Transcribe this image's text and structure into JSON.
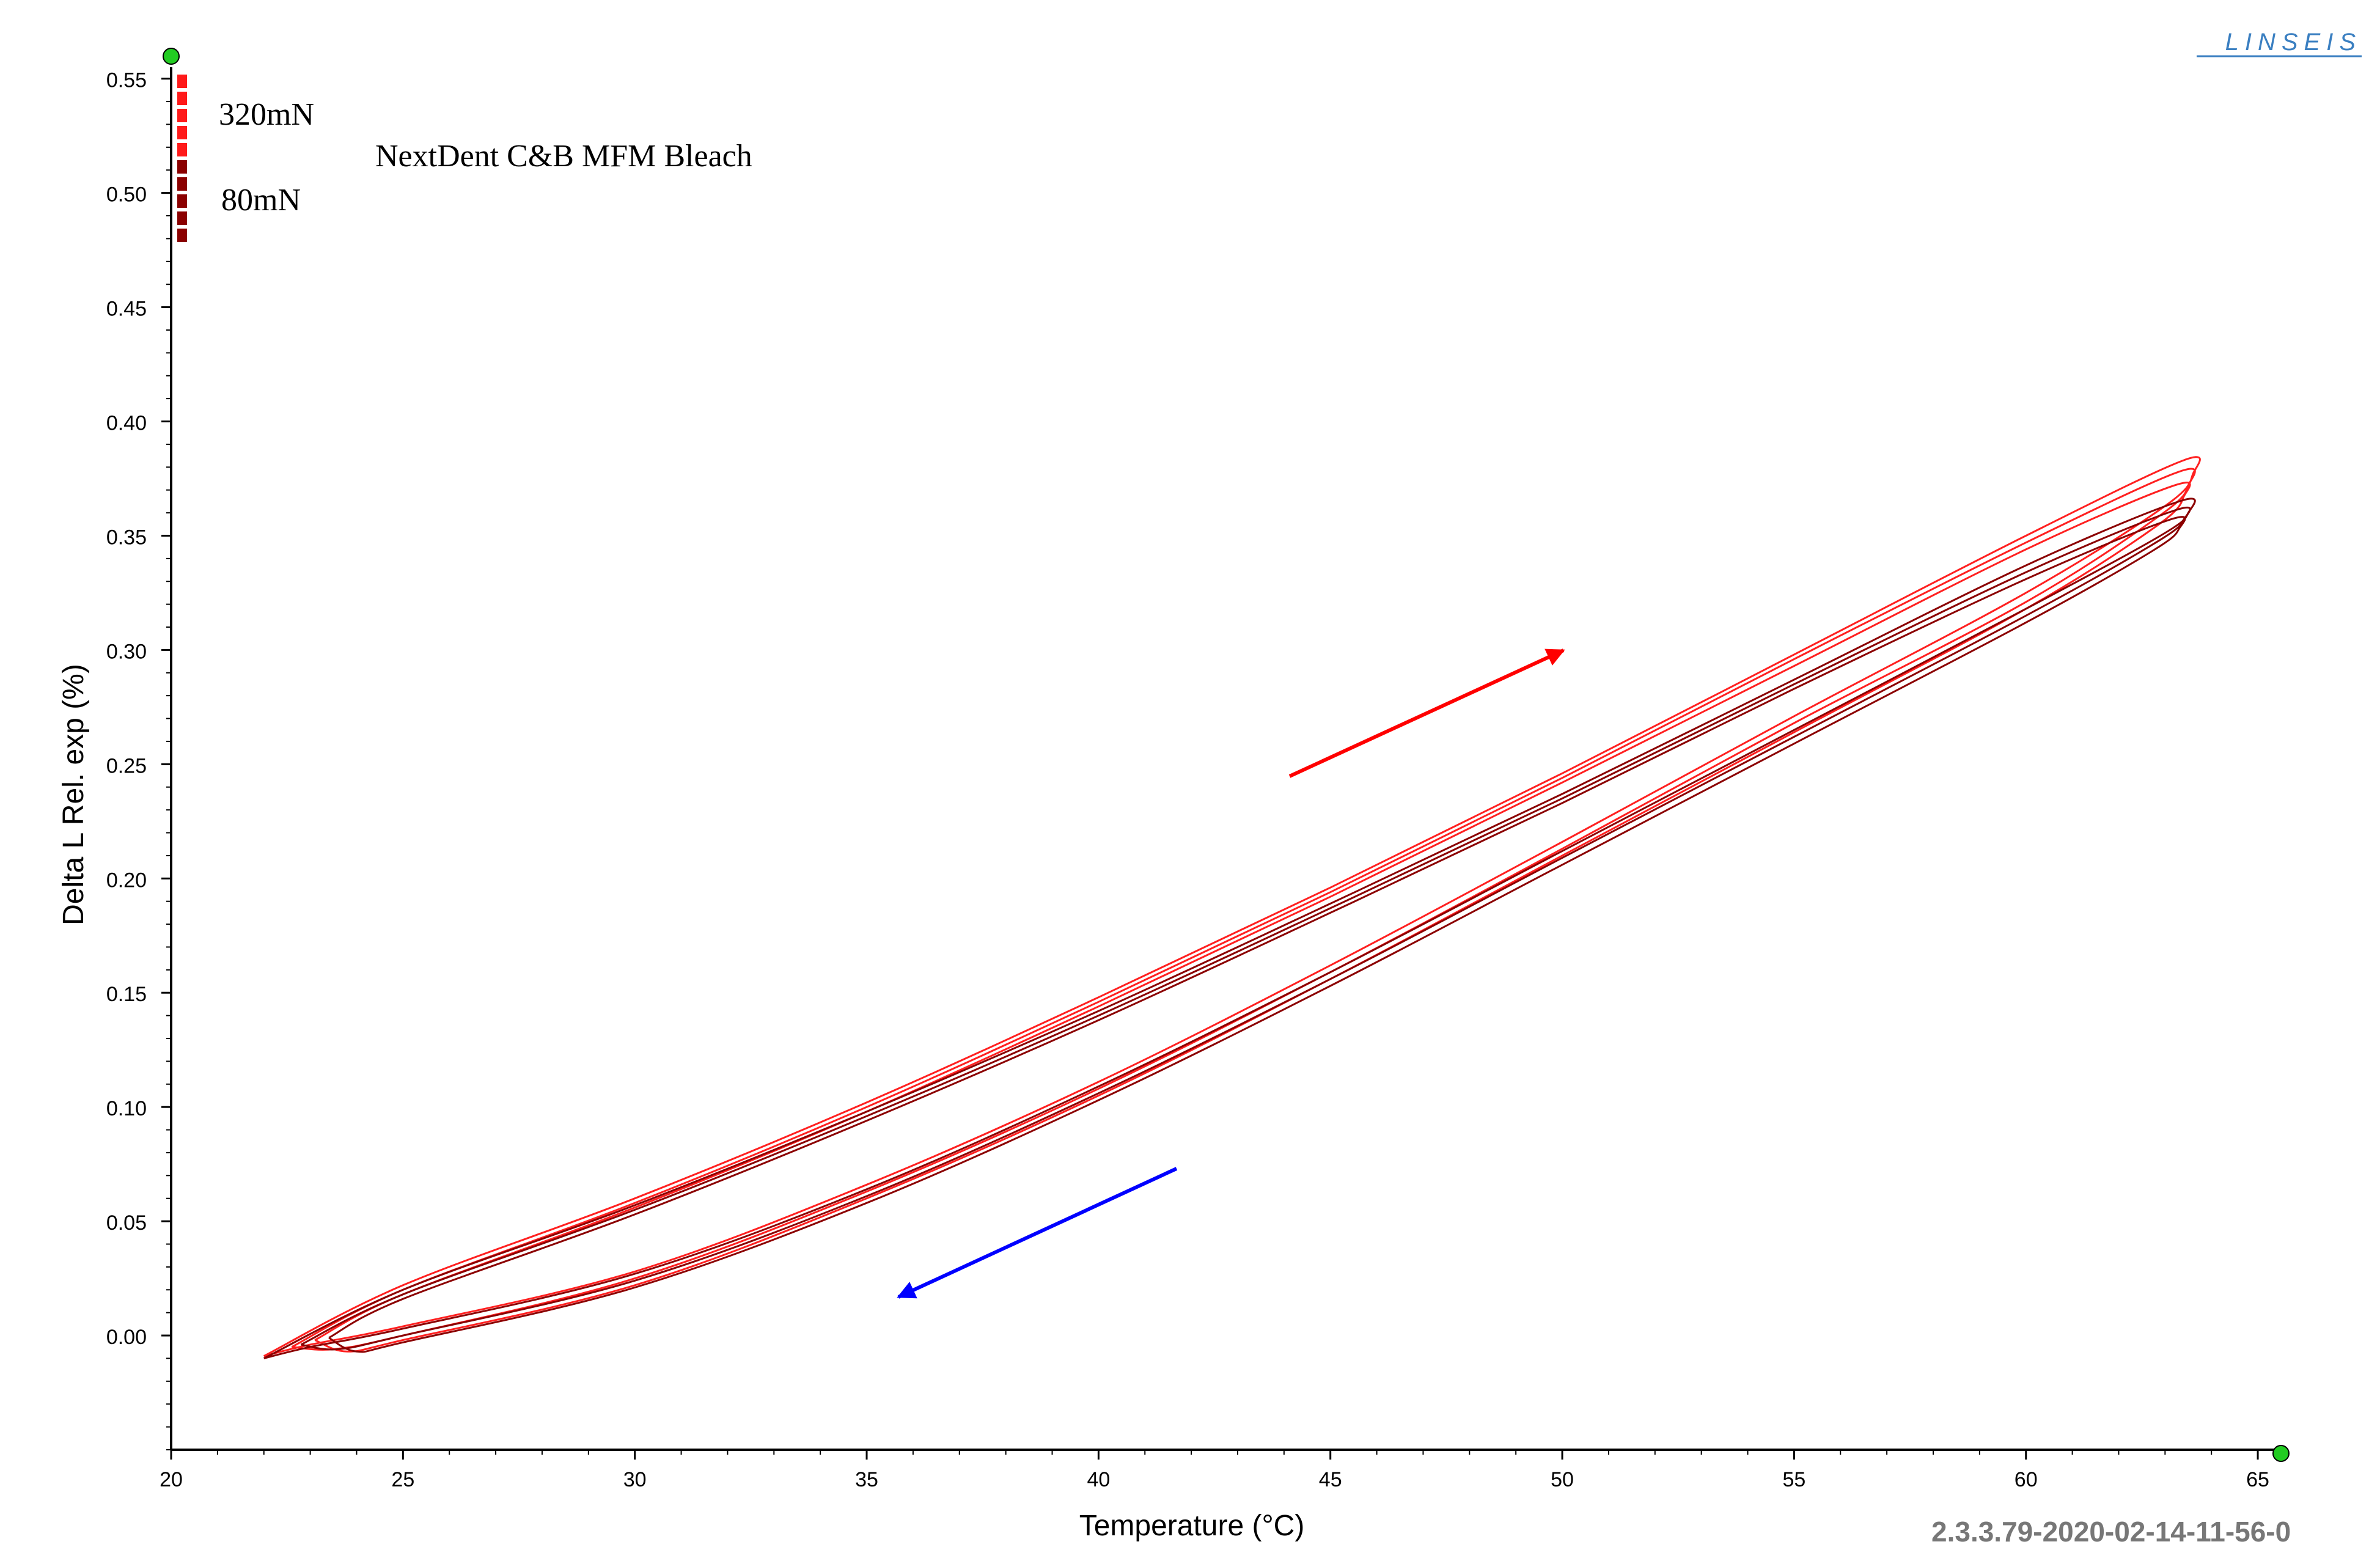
{
  "brand": "LINSEIS",
  "version_label": "2.3.3.79-2020-02-14-11-56-0",
  "sample_label": "NextDent C&B MFM Bleach",
  "legend": {
    "items": [
      {
        "label": "320mN",
        "color": "#ff1a1a"
      },
      {
        "label": "80mN",
        "color": "#8b0000"
      }
    ]
  },
  "colors": {
    "heating_arrow": "#ff0000",
    "cooling_arrow": "#0000ff",
    "cursor_marker": "#22cc22"
  },
  "chart_data": {
    "type": "line",
    "xlabel": "Temperature (°C)",
    "ylabel": "Delta L Rel. exp (%)",
    "xlim": [
      20,
      65.5
    ],
    "ylim": [
      -0.05,
      0.555
    ],
    "x_ticks": [
      "20",
      "25",
      "30",
      "35",
      "40",
      "45",
      "50",
      "55",
      "60",
      "65"
    ],
    "y_ticks": [
      "0.00",
      "0.05",
      "0.10",
      "0.15",
      "0.20",
      "0.25",
      "0.30",
      "0.35",
      "0.40",
      "0.45",
      "0.50",
      "0.55"
    ],
    "series": [
      {
        "name": "320mN",
        "color": "#ff2020",
        "cycles": [
          {
            "x": [
              22.0,
              25,
              30,
              35,
              40,
              45,
              50,
              55,
              60,
              63.4,
              63.6,
              63.0,
              60,
              55,
              50,
              45,
              40,
              35,
              30,
              25,
              23.0,
              22.0
            ],
            "y": [
              -0.009,
              0.022,
              0.06,
              0.102,
              0.148,
              0.196,
              0.246,
              0.298,
              0.35,
              0.383,
              0.377,
              0.363,
              0.325,
              0.271,
              0.216,
              0.162,
              0.111,
              0.066,
              0.028,
              0.004,
              -0.004,
              -0.009
            ]
          },
          {
            "x": [
              22.6,
              25,
              30,
              35,
              40,
              45,
              50,
              55,
              60,
              63.3,
              63.5,
              62.9,
              60,
              55,
              50,
              45,
              40,
              35,
              30,
              25,
              23.5,
              22.6
            ],
            "y": [
              -0.005,
              0.02,
              0.058,
              0.1,
              0.146,
              0.194,
              0.244,
              0.296,
              0.347,
              0.378,
              0.372,
              0.359,
              0.321,
              0.268,
              0.213,
              0.159,
              0.108,
              0.063,
              0.025,
              0.0,
              -0.006,
              -0.005
            ]
          },
          {
            "x": [
              23.1,
              25,
              30,
              35,
              40,
              45,
              50,
              55,
              60,
              63.2,
              63.4,
              62.8,
              60,
              55,
              50,
              45,
              40,
              35,
              30,
              25,
              23.8,
              23.1
            ],
            "y": [
              -0.002,
              0.018,
              0.056,
              0.098,
              0.144,
              0.192,
              0.242,
              0.293,
              0.344,
              0.372,
              0.367,
              0.354,
              0.318,
              0.264,
              0.21,
              0.156,
              0.105,
              0.06,
              0.022,
              -0.002,
              -0.007,
              -0.002
            ]
          }
        ]
      },
      {
        "name": "80mN",
        "color": "#8b0000",
        "cycles": [
          {
            "x": [
              22.0,
              25,
              30,
              35,
              40,
              45,
              50,
              55,
              60,
              63.3,
              63.5,
              62.9,
              60,
              55,
              50,
              45,
              40,
              35,
              30,
              25,
              23.0,
              22.0
            ],
            "y": [
              -0.01,
              0.02,
              0.057,
              0.098,
              0.142,
              0.189,
              0.237,
              0.287,
              0.337,
              0.365,
              0.36,
              0.35,
              0.318,
              0.265,
              0.212,
              0.159,
              0.109,
              0.064,
              0.027,
              0.003,
              -0.005,
              -0.01
            ]
          },
          {
            "x": [
              22.8,
              25,
              30,
              35,
              40,
              45,
              50,
              55,
              60,
              63.2,
              63.4,
              62.8,
              60,
              55,
              50,
              45,
              40,
              35,
              30,
              25,
              23.6,
              22.8
            ],
            "y": [
              -0.004,
              0.018,
              0.055,
              0.096,
              0.14,
              0.187,
              0.235,
              0.285,
              0.334,
              0.361,
              0.357,
              0.347,
              0.315,
              0.262,
              0.209,
              0.156,
              0.106,
              0.061,
              0.024,
              0.0,
              -0.006,
              -0.004
            ]
          },
          {
            "x": [
              23.4,
              25,
              30,
              35,
              40,
              45,
              50,
              55,
              60,
              63.1,
              63.3,
              62.7,
              60,
              55,
              50,
              45,
              40,
              35,
              30,
              25,
              24.0,
              23.4
            ],
            "y": [
              -0.001,
              0.016,
              0.053,
              0.094,
              0.138,
              0.185,
              0.233,
              0.283,
              0.331,
              0.357,
              0.353,
              0.343,
              0.312,
              0.259,
              0.206,
              0.153,
              0.103,
              0.058,
              0.021,
              -0.003,
              -0.007,
              -0.001
            ]
          }
        ]
      }
    ]
  }
}
